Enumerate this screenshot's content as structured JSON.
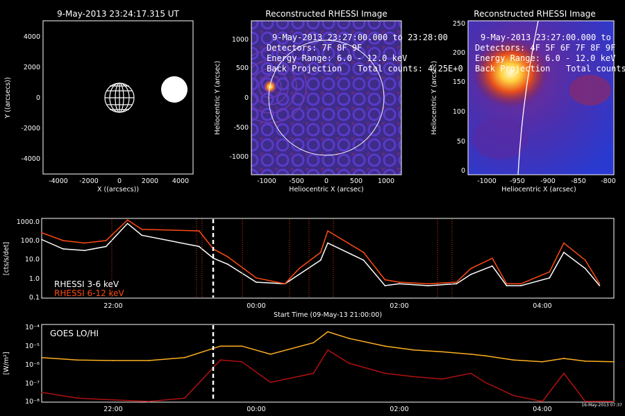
{
  "colors": {
    "background": "#000000",
    "axis": "#ffffff",
    "rhessi_low": "#ffffff",
    "rhessi_high": "#ff4a12",
    "goes_lo": "#ffb020",
    "goes_hi": "#b01010",
    "flare_marker": "#e03a10",
    "image_bg": "#3a2a8a"
  },
  "panel1": {
    "title": "9-May-2013 23:24:17.315 UT",
    "xlabel": "X ((arcsecs))",
    "ylabel": "Y ((arcsecs))",
    "xticks": [
      "-4000",
      "-2000",
      "0",
      "2000",
      "4000"
    ],
    "yticks": [
      "4000",
      "2000",
      "0",
      "-2000",
      "-4000"
    ]
  },
  "panel2": {
    "title": "Reconstructed RHESSI Image",
    "line1": "9-May-2013 23:27:00.000 to 23:28:00",
    "line2": "Detectors: 7F 8F 9F",
    "line3": "Energy Range: 6.0 - 12.0 keV",
    "line4a": "Back Projection",
    "line4b": "Total counts: 4.25E+0",
    "xlabel": "Heliocentric X (arcsec)",
    "ylabel": "Heliocentric Y (arcsec)",
    "xticks": [
      "-1000",
      "-500",
      "0",
      "500",
      "1000"
    ],
    "yticks": [
      "1000",
      "500",
      "0",
      "-500",
      "-1000"
    ]
  },
  "panel3": {
    "title": "Reconstructed RHESSI Image",
    "line1": "9-May-2013 23:27:00.000 to",
    "line2": "Detectors: 4F 5F 6F 7F 8F 9F",
    "line3": "Energy Range: 6.0 - 12.0 keV",
    "line4a": "Back Projection",
    "line4b": "Total counts:",
    "xlabel": "Heliocentric X (arcsec)",
    "ylabel": "Heliocentric Y (arcsec)",
    "xticks": [
      "-1000",
      "-950",
      "-900",
      "-850",
      "-800"
    ],
    "yticks": [
      "250",
      "200",
      "150",
      "100",
      "50",
      "0"
    ]
  },
  "rhessi": {
    "ylabel": "[cts/s/det]",
    "yticks": [
      "1000.0",
      "100.0",
      "10.0",
      "1.0",
      "0.1"
    ],
    "xticks": [
      "22:00",
      "00:00",
      "02:00",
      "04:00"
    ],
    "xlabel": "Start Time (09-May-13 21:00:00)",
    "legend_low": "RHESSI  3-6 keV",
    "legend_high": "RHESSI  6-12 keV"
  },
  "goes": {
    "ylabel": "[W/m²]",
    "legend": "GOES LO/HI",
    "yticks": [
      "10⁻⁴",
      "10⁻⁵",
      "10⁻⁶",
      "10⁻⁷",
      "10⁻⁸"
    ],
    "xticks": [
      "22:00",
      "00:00",
      "02:00",
      "04:00"
    ],
    "xlabel": "Start Time (09-May-13 21:00:00)",
    "stamp": "16-May-2013 07:37"
  },
  "chart_data": [
    {
      "type": "line",
      "title": "",
      "xlabel": "Start Time (09-May-13 21:00:00)",
      "ylabel": "[cts/s/det]",
      "yscale": "log",
      "ylim": [
        0.1,
        1000
      ],
      "x_hours_since_start": [
        0.0,
        0.3,
        0.6,
        0.9,
        1.2,
        1.4,
        2.2,
        2.4,
        2.6,
        3.0,
        3.4,
        3.6,
        3.9,
        4.0,
        4.5,
        4.8,
        5.0,
        5.4,
        5.8,
        6.0,
        6.3,
        6.5,
        6.7,
        7.1,
        7.3,
        7.6,
        7.8
      ],
      "series": [
        {
          "name": "RHESSI  3-6 keV",
          "values": [
            90,
            30,
            25,
            40,
            600,
            150,
            40,
            10,
            5,
            0.6,
            0.5,
            1.5,
            8,
            60,
            8,
            0.4,
            0.5,
            0.4,
            0.5,
            1.5,
            4,
            0.4,
            0.4,
            1.0,
            20,
            3,
            0.4
          ]
        },
        {
          "name": "RHESSI  6-12 keV",
          "values": [
            200,
            80,
            60,
            80,
            900,
            300,
            250,
            30,
            12,
            1.0,
            0.5,
            3,
            20,
            250,
            20,
            0.8,
            0.6,
            0.5,
            0.6,
            3,
            10,
            0.5,
            0.5,
            2,
            60,
            8,
            0.5
          ]
        }
      ]
    },
    {
      "type": "line",
      "title": "",
      "xlabel": "Start Time (09-May-13 21:00:00)",
      "ylabel": "[W/m²]",
      "yscale": "log",
      "ylim": [
        1e-08,
        0.0001
      ],
      "x_hours_since_start": [
        0.0,
        0.5,
        1.0,
        1.5,
        2.0,
        2.5,
        2.8,
        3.2,
        3.8,
        4.0,
        4.3,
        4.8,
        5.2,
        5.6,
        6.0,
        6.2,
        6.6,
        7.0,
        7.3,
        7.6,
        8.0
      ],
      "series": [
        {
          "name": "GOES LO",
          "values": [
            2e-06,
            1.5e-06,
            1.4e-06,
            1.4e-06,
            2e-06,
            8e-06,
            8e-06,
            3e-06,
            1.2e-05,
            4.5e-05,
            2e-05,
            8e-06,
            5e-06,
            4e-06,
            3e-06,
            2.5e-06,
            1.5e-06,
            1.2e-06,
            1.8e-06,
            1.3e-06,
            1.2e-06
          ]
        },
        {
          "name": "GOES HI",
          "values": [
            3e-08,
            1.5e-08,
            1.2e-08,
            1e-08,
            1.5e-08,
            1.5e-06,
            1.2e-06,
            1e-07,
            3e-07,
            5e-06,
            1e-06,
            3e-07,
            2e-07,
            1.5e-07,
            3e-07,
            1e-07,
            2e-08,
            1e-08,
            3e-07,
            1e-08,
            1e-08
          ]
        }
      ]
    }
  ]
}
